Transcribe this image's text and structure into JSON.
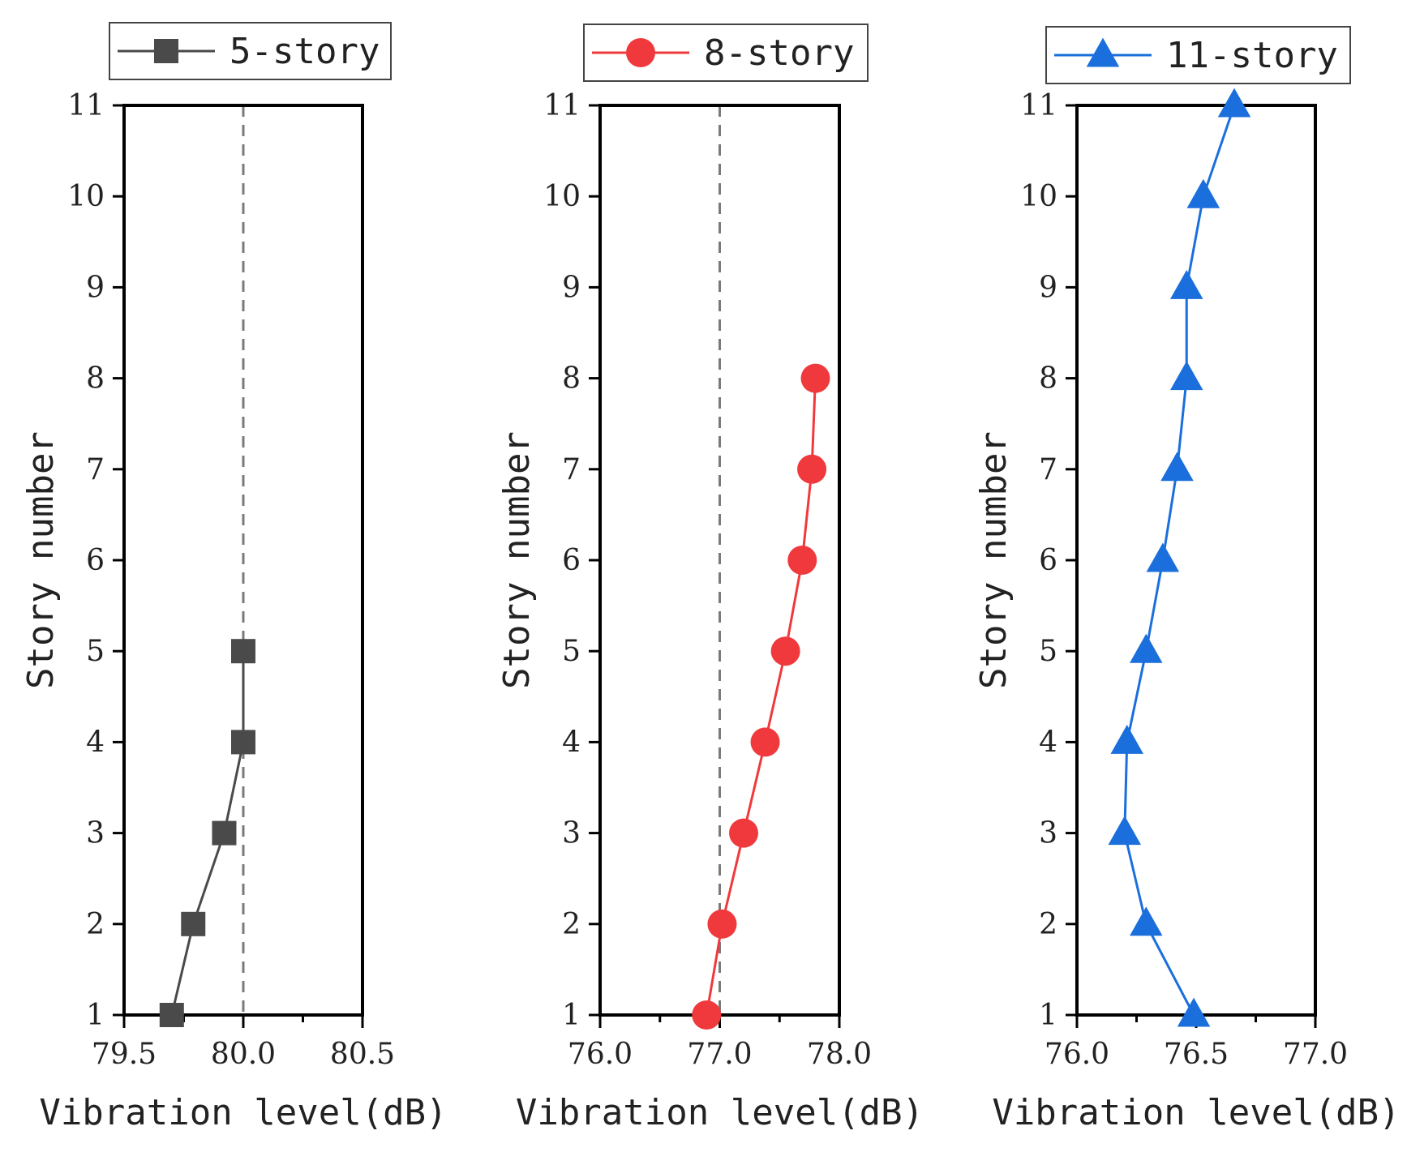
{
  "chart_data": [
    {
      "type": "line",
      "series_name": "5-story",
      "color": "#4a4a4a",
      "marker": "square",
      "xlabel": "Vibration level(dB)",
      "ylabel": "Story number",
      "xlim": [
        79.5,
        80.5
      ],
      "ylim": [
        1,
        11
      ],
      "xticks": [
        "79.5",
        "80.0",
        "80.5"
      ],
      "xtick_values": [
        79.5,
        80.0,
        80.5
      ],
      "minor_xticks": [
        79.75,
        80.25
      ],
      "yticks": [
        "1",
        "2",
        "3",
        "4",
        "5",
        "6",
        "7",
        "8",
        "9",
        "10",
        "11"
      ],
      "reference_line_x": 80.0,
      "stories": [
        1,
        2,
        3,
        4,
        5
      ],
      "values": [
        79.7,
        79.79,
        79.92,
        80.0,
        80.0
      ]
    },
    {
      "type": "line",
      "series_name": "8-story",
      "color": "#f0393c",
      "marker": "circle",
      "xlabel": "Vibration level(dB)",
      "ylabel": "Story number",
      "xlim": [
        76.0,
        78.0
      ],
      "ylim": [
        1,
        11
      ],
      "xticks": [
        "76.0",
        "77.0",
        "78.0"
      ],
      "xtick_values": [
        76.0,
        77.0,
        78.0
      ],
      "minor_xticks": [
        76.5,
        77.5
      ],
      "yticks": [
        "1",
        "2",
        "3",
        "4",
        "5",
        "6",
        "7",
        "8",
        "9",
        "10",
        "11"
      ],
      "reference_line_x": 77.0,
      "stories": [
        1,
        2,
        3,
        4,
        5,
        6,
        7,
        8
      ],
      "values": [
        76.89,
        77.02,
        77.2,
        77.38,
        77.55,
        77.69,
        77.77,
        77.8
      ]
    },
    {
      "type": "line",
      "series_name": "11-story",
      "color": "#1a6fdc",
      "marker": "triangle",
      "xlabel": "Vibration level(dB)",
      "ylabel": "Story number",
      "xlim": [
        76.0,
        77.0
      ],
      "ylim": [
        1,
        11
      ],
      "xticks": [
        "76.0",
        "76.5",
        "77.0"
      ],
      "xtick_values": [
        76.0,
        76.5,
        77.0
      ],
      "minor_xticks": [
        76.25,
        76.75
      ],
      "yticks": [
        "1",
        "2",
        "3",
        "4",
        "5",
        "6",
        "7",
        "8",
        "9",
        "10",
        "11"
      ],
      "reference_line_x": null,
      "stories": [
        1,
        2,
        3,
        4,
        5,
        6,
        7,
        8,
        9,
        10,
        11
      ],
      "values": [
        76.49,
        76.29,
        76.2,
        76.21,
        76.29,
        76.36,
        76.42,
        76.46,
        76.46,
        76.53,
        76.66
      ]
    }
  ]
}
